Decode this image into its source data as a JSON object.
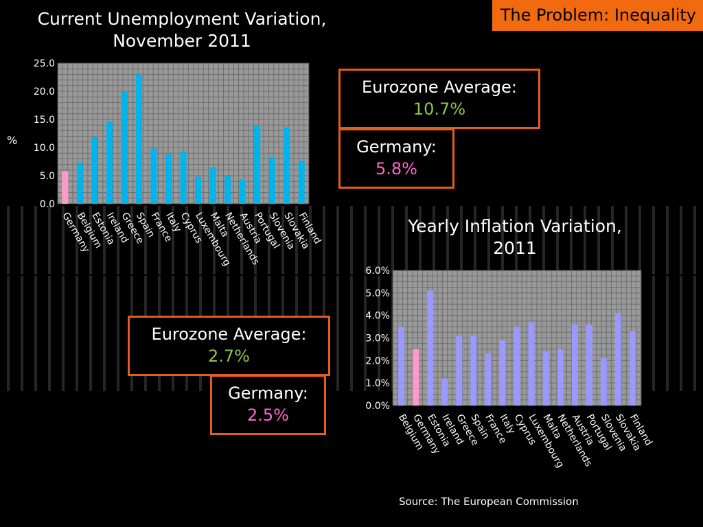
{
  "header": {
    "tag": "The Problem: Inequality"
  },
  "source": "Source: The European Commission",
  "callouts": {
    "unemp_avg_label": "Eurozone Average:",
    "unemp_avg_value": "10.7%",
    "unemp_de_label": "Germany:",
    "unemp_de_value": "5.8%",
    "infl_avg_label": "Eurozone Average:",
    "infl_avg_value": "2.7%",
    "infl_de_label": "Germany:",
    "infl_de_value": "2.5%"
  },
  "colors": {
    "bar_blue": "#00b4ee",
    "bar_pink": "#ff99cc",
    "bar_lilac": "#9999ff",
    "plot_bg": "#999999",
    "accent": "#f26a10"
  },
  "chart_data": [
    {
      "type": "bar",
      "title": "Current Unemployment Variation, November 2011",
      "ylabel": "%",
      "ylim": [
        0,
        25
      ],
      "yticks": [
        "0.0",
        "5.0",
        "10.0",
        "15.0",
        "20.0",
        "25.0"
      ],
      "grid": true,
      "categories": [
        "Germany",
        "Belgium",
        "Estonia",
        "Ireland",
        "Greece",
        "Spain",
        "France",
        "Italy",
        "Cyprus",
        "Luxembourg",
        "Malta",
        "Netherlands",
        "Austria",
        "Portugal",
        "Slovenia",
        "Slovakia",
        "Finland"
      ],
      "values": [
        5.8,
        7.3,
        11.8,
        14.6,
        20.0,
        23.0,
        9.8,
        8.8,
        9.3,
        4.8,
        6.5,
        4.9,
        4.3,
        14.0,
        8.3,
        13.6,
        7.6
      ],
      "highlight_index": 0
    },
    {
      "type": "bar",
      "title": "Yearly Inflation Variation, 2011",
      "ylim": [
        0,
        6
      ],
      "yticks": [
        "0.0%",
        "1.0%",
        "2.0%",
        "3.0%",
        "4.0%",
        "5.0%",
        "6.0%"
      ],
      "grid": true,
      "categories": [
        "Belgium",
        "Germany",
        "Estonia",
        "Ireland",
        "Greece",
        "Spain",
        "France",
        "Italy",
        "Cyprus",
        "Luxembourg",
        "Malta",
        "Netherlands",
        "Austria",
        "Portugal",
        "Slovenia",
        "Slovakia",
        "Finland"
      ],
      "values": [
        3.5,
        2.5,
        5.1,
        1.2,
        3.1,
        3.1,
        2.3,
        2.9,
        3.5,
        3.7,
        2.4,
        2.5,
        3.6,
        3.6,
        2.1,
        4.1,
        3.3
      ],
      "highlight_index": 1
    }
  ]
}
